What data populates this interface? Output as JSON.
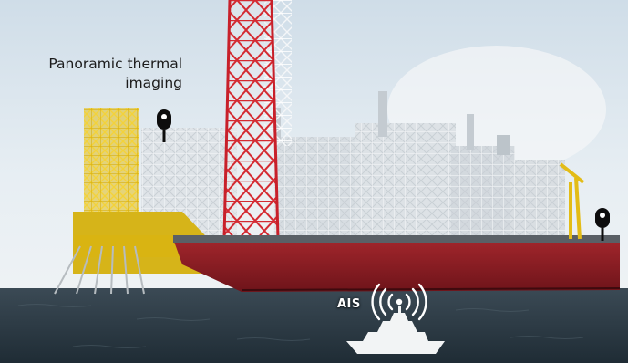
{
  "annotations": {
    "thermal_line1": "Panoramic thermal",
    "thermal_line2": "imaging",
    "ais": "AIS"
  },
  "icons": {
    "thermal_camera_left": "thermal-camera-icon",
    "thermal_camera_right": "thermal-camera-icon",
    "ais_signal": "radio-signal-icon",
    "ship": "patrol-ship-icon"
  },
  "colors": {
    "sky": "#dfe9f0",
    "sea": "#2b3a45",
    "hull": "#8a1c22",
    "yellow_structure": "#e9c41c",
    "red_tower": "#c8202a",
    "white_frame": "#e8ecef",
    "label_white": "#ffffff"
  }
}
